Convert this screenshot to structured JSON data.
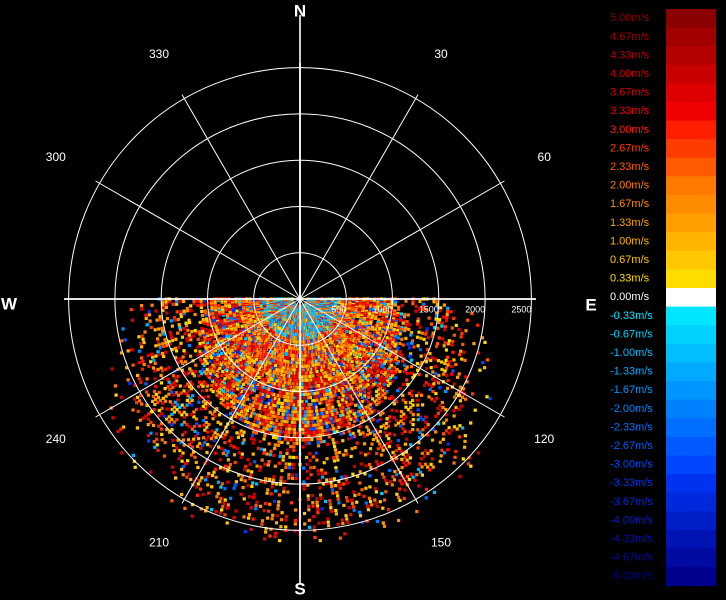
{
  "chart_data": {
    "type": "polar-radar-velocity",
    "compass": {
      "north": "N",
      "south": "S",
      "east": "E",
      "west": "W"
    },
    "angle_labels": [
      {
        "deg": 30,
        "text": "30"
      },
      {
        "deg": 60,
        "text": "60"
      },
      {
        "deg": 120,
        "text": "120"
      },
      {
        "deg": 150,
        "text": "150"
      },
      {
        "deg": 210,
        "text": "210"
      },
      {
        "deg": 240,
        "text": "240"
      },
      {
        "deg": 300,
        "text": "300"
      },
      {
        "deg": 330,
        "text": "330"
      }
    ],
    "range_rings": [
      500,
      1000,
      1500,
      2000,
      2500
    ],
    "range_labels": [
      "500",
      "1000",
      "1500",
      "2000",
      "2500"
    ],
    "max_range": 2550,
    "scan_sector_deg": [
      90,
      270
    ],
    "colorbar": [
      {
        "label": "5.00m/s",
        "color": "#8b0000"
      },
      {
        "label": "4.67m/s",
        "color": "#a00000"
      },
      {
        "label": "4.33m/s",
        "color": "#b40000"
      },
      {
        "label": "4.00m/s",
        "color": "#c80000"
      },
      {
        "label": "3.67m/s",
        "color": "#dc0000"
      },
      {
        "label": "3.33m/s",
        "color": "#f00000"
      },
      {
        "label": "3.00m/s",
        "color": "#ff1e00"
      },
      {
        "label": "2.67m/s",
        "color": "#ff3c00"
      },
      {
        "label": "2.33m/s",
        "color": "#ff5a00"
      },
      {
        "label": "2.00m/s",
        "color": "#ff7800"
      },
      {
        "label": "1.67m/s",
        "color": "#ff8c00"
      },
      {
        "label": "1.33m/s",
        "color": "#ffa000"
      },
      {
        "label": "1.00m/s",
        "color": "#ffb400"
      },
      {
        "label": "0.67m/s",
        "color": "#ffc800"
      },
      {
        "label": "0.33m/s",
        "color": "#ffdc00"
      },
      {
        "label": "0.00m/s",
        "color": "#ffffff"
      },
      {
        "label": "-0.33m/s",
        "color": "#00e6ff"
      },
      {
        "label": "-0.67m/s",
        "color": "#00d2ff"
      },
      {
        "label": "-1.00m/s",
        "color": "#00beff"
      },
      {
        "label": "-1.33m/s",
        "color": "#00aaff"
      },
      {
        "label": "-1.67m/s",
        "color": "#0096ff"
      },
      {
        "label": "-2.00m/s",
        "color": "#0082ff"
      },
      {
        "label": "-2.33m/s",
        "color": "#006eff"
      },
      {
        "label": "-2.67m/s",
        "color": "#005aff"
      },
      {
        "label": "-3.00m/s",
        "color": "#0046ff"
      },
      {
        "label": "-3.33m/s",
        "color": "#0032f0"
      },
      {
        "label": "-3.67m/s",
        "color": "#0028dc"
      },
      {
        "label": "-4.00m/s",
        "color": "#001ec8"
      },
      {
        "label": "-4.33m/s",
        "color": "#0014b4"
      },
      {
        "label": "-4.67m/s",
        "color": "#000aa0"
      },
      {
        "label": "-5.00m/s",
        "color": "#00008c"
      }
    ]
  }
}
